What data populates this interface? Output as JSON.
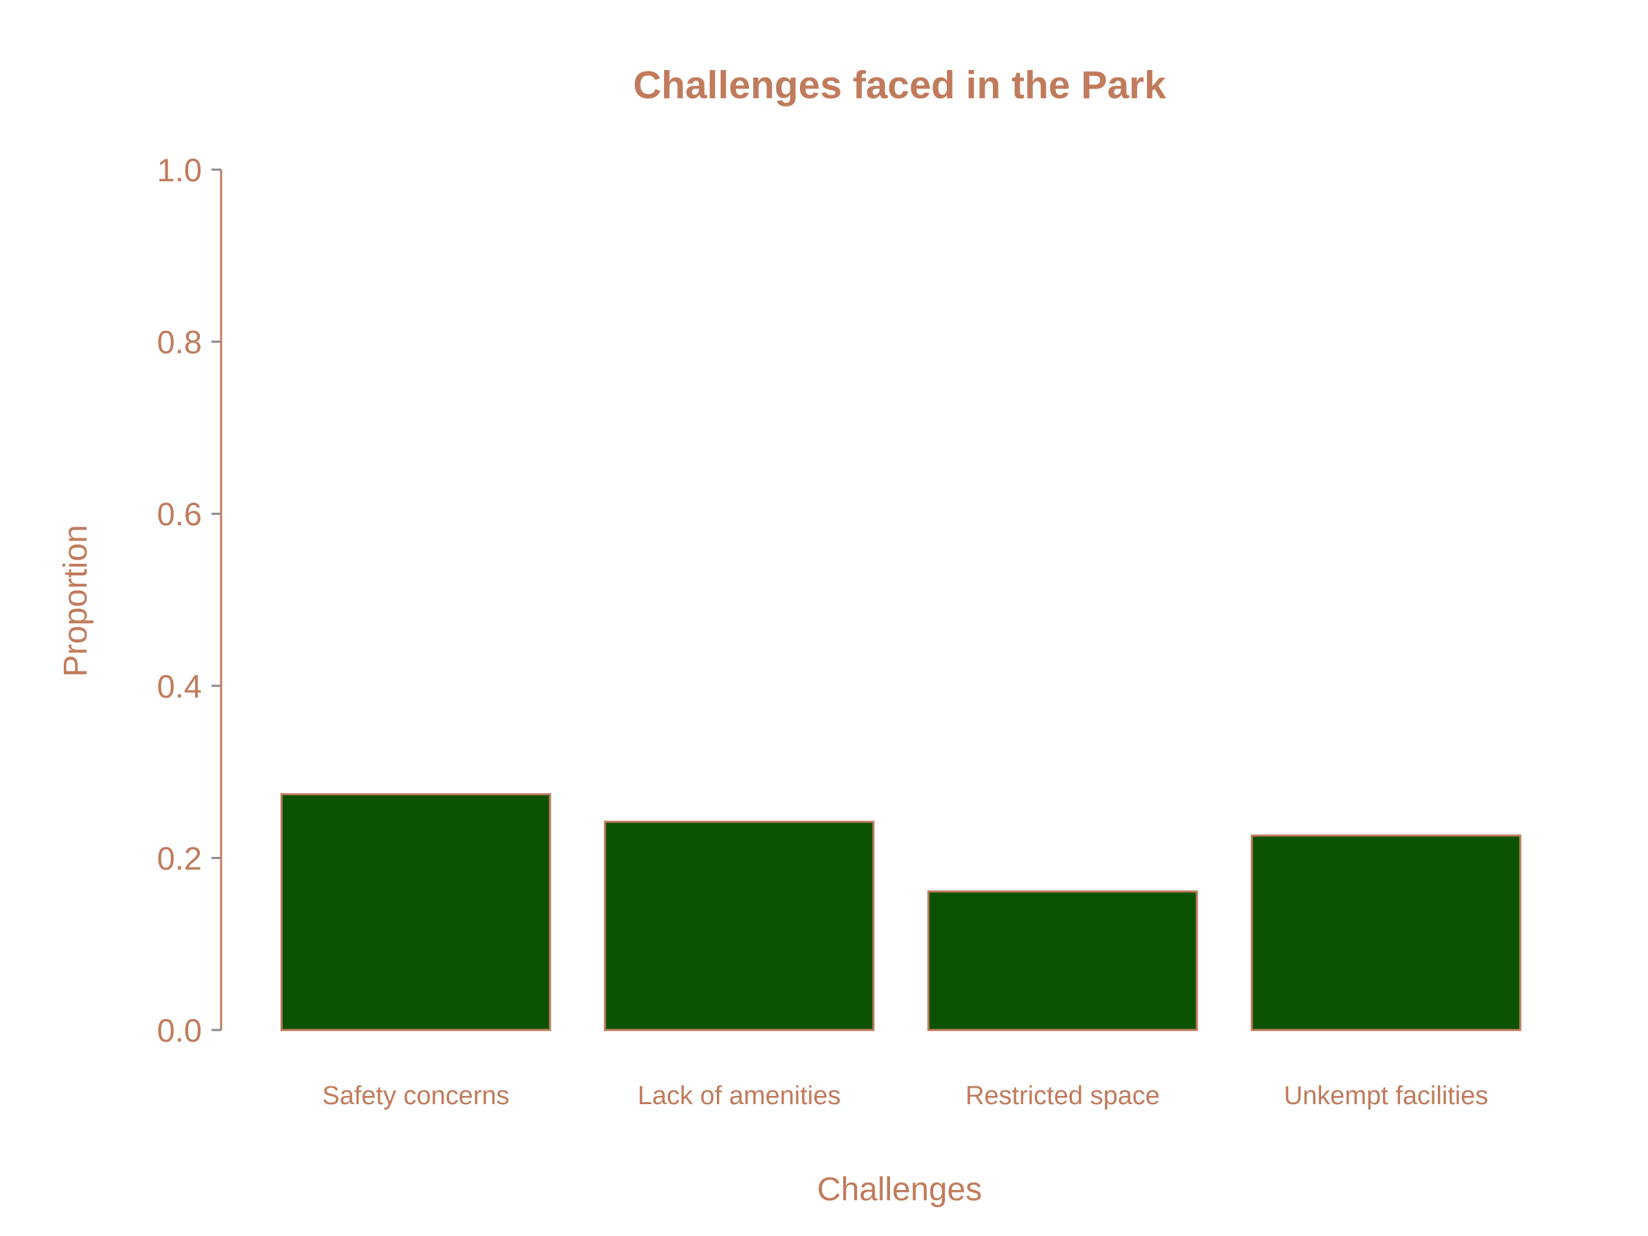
{
  "colors": {
    "text": "#C07B5C",
    "bar_fill": "#0C5204",
    "bar_edge": "#C07B5C",
    "tick": "#888888",
    "axis_line": "#C07B5C",
    "background": "#FFFFFF"
  },
  "chart_data": {
    "type": "bar",
    "title": "Challenges faced in the Park",
    "xlabel": "Challenges",
    "ylabel": "Proportion",
    "categories": [
      "Safety concerns",
      "Lack of amenities",
      "Restricted space",
      "Unkempt facilities"
    ],
    "values": [
      0.274,
      0.242,
      0.161,
      0.226
    ],
    "ylim": [
      0.0,
      1.0
    ],
    "yticks": [
      0.0,
      0.2,
      0.4,
      0.6,
      0.8,
      1.0
    ],
    "ytick_labels": [
      "0.0",
      "0.2",
      "0.4",
      "0.6",
      "0.8",
      "1.0"
    ],
    "grid": false,
    "legend": "none"
  }
}
